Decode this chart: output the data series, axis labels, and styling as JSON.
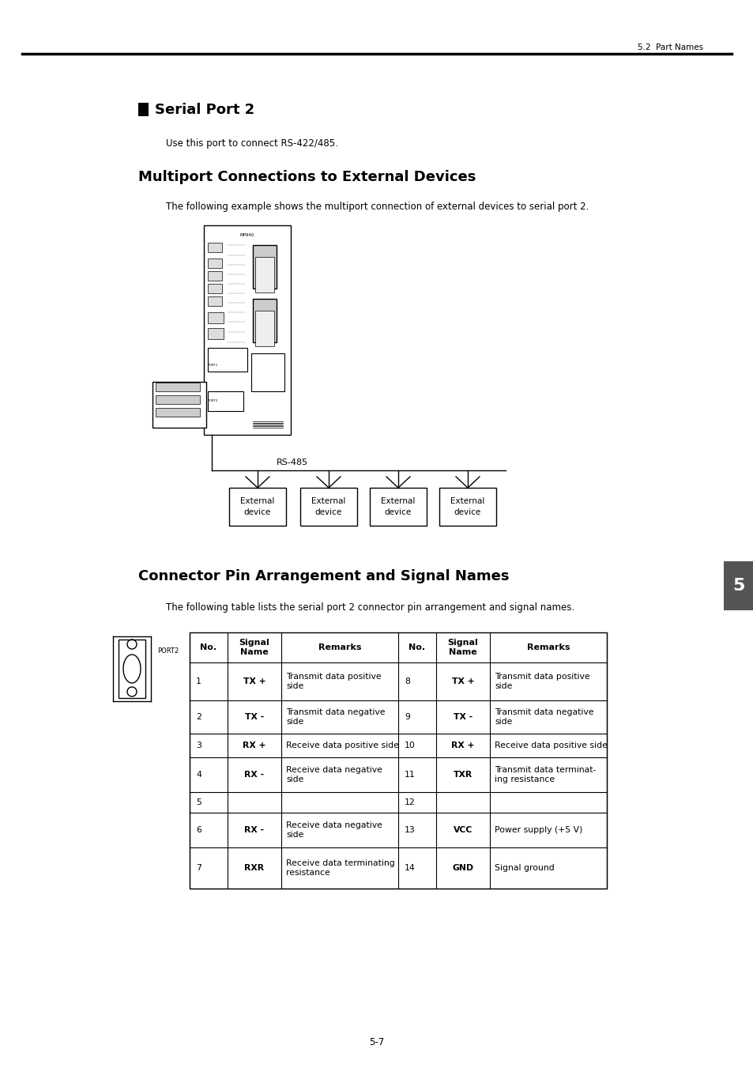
{
  "page_header": "5.2  Part Names",
  "section_title": "Serial Port 2",
  "subtitle_text": "Use this port to connect RS-422/485.",
  "section2_title": "Multiport Connections to External Devices",
  "section2_body": "The following example shows the multiport connection of external devices to serial port 2.",
  "rs485_label": "RS-485",
  "external_device_label": "External\ndevice",
  "section3_title": "Connector Pin Arrangement and Signal Names",
  "section3_body": "The following table lists the serial port 2 connector pin arrangement and signal names.",
  "port2_label": "PORT2",
  "chapter_number": "5",
  "page_number": "5-7",
  "table_headers": [
    "No.",
    "Signal\nName",
    "Remarks",
    "No.",
    "Signal\nName",
    "Remarks"
  ],
  "table_rows": [
    [
      "1",
      "TX +",
      "Transmit data positive\nside",
      "8",
      "TX +",
      "Transmit data positive\nside"
    ],
    [
      "2",
      "TX -",
      "Transmit data negative\nside",
      "9",
      "TX -",
      "Transmit data negative\nside"
    ],
    [
      "3",
      "RX +",
      "Receive data positive side",
      "10",
      "RX +",
      "Receive data positive side"
    ],
    [
      "4",
      "RX -",
      "Receive data negative\nside",
      "11",
      "TXR",
      "Transmit data terminat-\ning resistance"
    ],
    [
      "5",
      "",
      "",
      "12",
      "",
      ""
    ],
    [
      "6",
      "RX -",
      "Receive data negative\nside",
      "13",
      "VCC",
      "Power supply (+5 V)"
    ],
    [
      "7",
      "RXR",
      "Receive data terminating\nresistance",
      "14",
      "GND",
      "Signal ground"
    ]
  ],
  "bg_color": "#ffffff",
  "text_color": "#000000",
  "chapter_tab_color": "#555555"
}
